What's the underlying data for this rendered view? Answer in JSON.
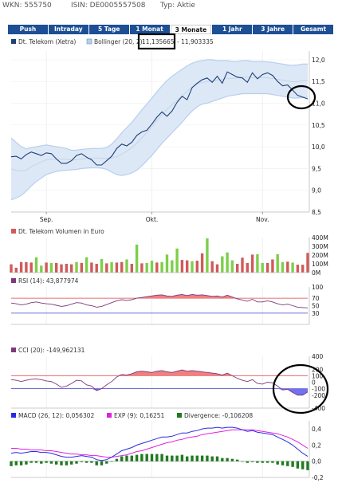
{
  "header": {
    "wkn": "WKN: 555750",
    "isin": "ISIN: DE0005557508",
    "typ": "Typ: Aktie"
  },
  "tabs": [
    {
      "label": "Push"
    },
    {
      "label": "Intraday"
    },
    {
      "label": "5 Tage"
    },
    {
      "label": "1 Monat"
    },
    {
      "label": "3 Monate",
      "active": true
    },
    {
      "label": "1 Jahr"
    },
    {
      "label": "3 Jahre"
    },
    {
      "label": "Gesamt"
    }
  ],
  "colors": {
    "price": "#1f3f77",
    "bollinger": "#b7cfee",
    "bollinger_mid": "#c6d3e6",
    "volume_up": "#7dcf4b",
    "volume_down": "#d05a5a",
    "rsi": "#7a3a7a",
    "rsi_fill": "#f08080",
    "cci": "#7a3a7a",
    "cci_fill_pos": "#f08080",
    "cci_fill_neg": "#7070f0",
    "macd": "#2a2ae0",
    "exp": "#e020e0",
    "divergence": "#1f7a1f",
    "line_red": "#e04040",
    "line_blue": "#4040d0",
    "annotation": "#000000"
  },
  "chart_data": [
    {
      "type": "line",
      "legend": [
        {
          "name": "Dt. Telekom (Xetra)"
        },
        {
          "name": "Bollinger (20, 2):",
          "extra": "11,135665",
          "extra2": "- 11,903335"
        }
      ],
      "x_ticks": [
        {
          "label": "Sep.",
          "idx": 7
        },
        {
          "label": "Okt.",
          "idx": 28
        },
        {
          "label": "Nov.",
          "idx": 50
        }
      ],
      "ylim": [
        8.5,
        12.2
      ],
      "y_ticks": [
        "12,0",
        "11,5",
        "11,0",
        "10,5",
        "10,0",
        "9,5",
        "9,0",
        "8,5"
      ],
      "y_tick_values": [
        12.0,
        11.5,
        11.0,
        10.5,
        10.0,
        9.5,
        9.0,
        8.5
      ],
      "price": [
        9.77,
        9.78,
        9.72,
        9.82,
        9.88,
        9.84,
        9.8,
        9.86,
        9.84,
        9.72,
        9.62,
        9.62,
        9.68,
        9.8,
        9.84,
        9.76,
        9.7,
        9.58,
        9.58,
        9.68,
        9.78,
        9.96,
        10.06,
        10.02,
        10.1,
        10.26,
        10.34,
        10.38,
        10.52,
        10.68,
        10.8,
        10.7,
        10.82,
        11.02,
        11.16,
        11.08,
        11.36,
        11.46,
        11.54,
        11.58,
        11.48,
        11.62,
        11.46,
        11.72,
        11.66,
        11.6,
        11.58,
        11.48,
        11.7,
        11.56,
        11.66,
        11.7,
        11.64,
        11.5,
        11.4,
        11.42,
        11.3,
        11.18,
        11.14,
        11.1
      ],
      "boll_upper": [
        10.2,
        10.1,
        10.0,
        9.95,
        9.98,
        10.0,
        10.02,
        10.04,
        10.02,
        10.0,
        9.98,
        9.96,
        9.92,
        9.92,
        9.94,
        9.95,
        9.96,
        9.96,
        9.96,
        9.98,
        10.06,
        10.18,
        10.32,
        10.44,
        10.56,
        10.7,
        10.85,
        10.98,
        11.12,
        11.26,
        11.4,
        11.52,
        11.62,
        11.7,
        11.78,
        11.86,
        11.92,
        11.96,
        11.98,
        12.0,
        12.0,
        11.98,
        11.98,
        11.98,
        11.96,
        11.96,
        11.98,
        11.98,
        11.96,
        11.96,
        11.96,
        11.95,
        11.94,
        11.92,
        11.9,
        11.88,
        11.87,
        11.88,
        11.9,
        11.9
      ],
      "boll_lower": [
        8.78,
        8.82,
        8.88,
        8.98,
        9.1,
        9.2,
        9.28,
        9.36,
        9.4,
        9.43,
        9.45,
        9.46,
        9.47,
        9.48,
        9.5,
        9.51,
        9.52,
        9.52,
        9.51,
        9.48,
        9.42,
        9.36,
        9.34,
        9.36,
        9.4,
        9.46,
        9.56,
        9.68,
        9.8,
        9.94,
        10.08,
        10.2,
        10.32,
        10.44,
        10.56,
        10.7,
        10.82,
        10.92,
        10.98,
        11.0,
        11.04,
        11.08,
        11.12,
        11.16,
        11.18,
        11.2,
        11.22,
        11.22,
        11.22,
        11.22,
        11.22,
        11.22,
        11.2,
        11.18,
        11.16,
        11.14,
        11.12,
        11.12,
        11.13,
        11.14
      ]
    },
    {
      "type": "bar",
      "title": "Dt. Telekom Volumen in Euro",
      "ylim": [
        0,
        400
      ],
      "y_ticks": [
        "400M",
        "300M",
        "200M",
        "100M",
        "0M"
      ],
      "y_tick_values": [
        400,
        300,
        200,
        100,
        0
      ],
      "values": [
        95,
        55,
        120,
        120,
        115,
        175,
        80,
        115,
        110,
        110,
        95,
        100,
        95,
        120,
        110,
        175,
        115,
        100,
        155,
        105,
        120,
        115,
        120,
        150,
        100,
        320,
        105,
        110,
        135,
        115,
        120,
        205,
        140,
        275,
        145,
        140,
        130,
        135,
        220,
        390,
        130,
        95,
        185,
        230,
        140,
        100,
        170,
        110,
        205,
        210,
        110,
        110,
        150,
        210,
        120,
        125,
        115,
        90,
        90,
        225
      ],
      "direction": [
        "down",
        "down",
        "down",
        "down",
        "down",
        "up",
        "up",
        "down",
        "up",
        "down",
        "down",
        "down",
        "down",
        "up",
        "down",
        "up",
        "down",
        "down",
        "up",
        "down",
        "up",
        "down",
        "down",
        "up",
        "down",
        "up",
        "down",
        "up",
        "up",
        "down",
        "up",
        "up",
        "up",
        "up",
        "down",
        "down",
        "up",
        "down",
        "down",
        "up",
        "down",
        "down",
        "up",
        "up",
        "up",
        "down",
        "down",
        "down",
        "down",
        "up",
        "up",
        "down",
        "down",
        "up",
        "up",
        "down",
        "up",
        "down",
        "down",
        "down"
      ]
    },
    {
      "type": "line",
      "title": "RSI (14): 43,877974",
      "ylim": [
        0,
        100
      ],
      "y_ticks": [
        "100",
        "70",
        "50",
        "30"
      ],
      "y_tick_values": [
        100,
        70,
        50,
        30
      ],
      "ref_lines": [
        70,
        30
      ],
      "values": [
        57,
        55,
        52,
        54,
        58,
        60,
        57,
        55,
        54,
        51,
        48,
        50,
        54,
        58,
        57,
        52,
        50,
        46,
        48,
        53,
        58,
        63,
        66,
        64,
        66,
        70,
        72,
        74,
        76,
        78,
        79,
        76,
        75,
        78,
        80,
        77,
        80,
        78,
        79,
        77,
        75,
        76,
        73,
        78,
        73,
        68,
        65,
        62,
        67,
        60,
        60,
        63,
        60,
        55,
        52,
        54,
        50,
        46,
        45,
        44
      ]
    },
    {
      "type": "line",
      "title": "CCI (20): -149,962131",
      "ylim": [
        -400,
        400
      ],
      "y_ticks": [
        "400",
        "200",
        "100",
        "0",
        "-100",
        "-200",
        "-400"
      ],
      "y_tick_values": [
        400,
        200,
        100,
        0,
        -100,
        -200,
        -400
      ],
      "ref_lines": [
        100,
        -100
      ],
      "values": [
        40,
        30,
        10,
        30,
        45,
        50,
        40,
        20,
        10,
        -30,
        -80,
        -60,
        -20,
        30,
        20,
        -40,
        -60,
        -130,
        -100,
        -40,
        10,
        80,
        120,
        110,
        130,
        160,
        170,
        160,
        150,
        170,
        180,
        160,
        150,
        170,
        190,
        170,
        180,
        170,
        160,
        150,
        140,
        130,
        110,
        140,
        100,
        60,
        30,
        10,
        40,
        -20,
        -30,
        0,
        -10,
        -60,
        -120,
        -110,
        -160,
        -200,
        -200,
        -150
      ]
    },
    {
      "type": "line",
      "legend": [
        {
          "name": "MACD (26, 12): 0,056302"
        },
        {
          "name": "EXP (9): 0,16251"
        },
        {
          "name": "Divergence: -0,106208"
        }
      ],
      "ylim": [
        -0.2,
        0.5
      ],
      "y_ticks": [
        "0,4",
        "0,2",
        "0,0",
        "-0,2"
      ],
      "y_tick_values": [
        0.4,
        0.2,
        0.0,
        -0.2
      ],
      "macd": [
        0.1,
        0.11,
        0.1,
        0.11,
        0.12,
        0.12,
        0.11,
        0.11,
        0.1,
        0.08,
        0.06,
        0.05,
        0.05,
        0.06,
        0.07,
        0.06,
        0.05,
        0.02,
        0.01,
        0.02,
        0.05,
        0.09,
        0.13,
        0.15,
        0.17,
        0.2,
        0.22,
        0.24,
        0.26,
        0.28,
        0.3,
        0.3,
        0.31,
        0.33,
        0.35,
        0.35,
        0.37,
        0.38,
        0.4,
        0.41,
        0.41,
        0.42,
        0.41,
        0.42,
        0.42,
        0.41,
        0.39,
        0.37,
        0.38,
        0.36,
        0.35,
        0.34,
        0.33,
        0.3,
        0.27,
        0.24,
        0.2,
        0.15,
        0.1,
        0.06
      ],
      "exp": [
        0.16,
        0.16,
        0.15,
        0.15,
        0.14,
        0.14,
        0.14,
        0.13,
        0.13,
        0.12,
        0.11,
        0.1,
        0.09,
        0.09,
        0.08,
        0.08,
        0.07,
        0.07,
        0.06,
        0.05,
        0.05,
        0.06,
        0.07,
        0.08,
        0.1,
        0.12,
        0.13,
        0.15,
        0.17,
        0.19,
        0.21,
        0.23,
        0.24,
        0.26,
        0.27,
        0.29,
        0.3,
        0.31,
        0.33,
        0.34,
        0.35,
        0.36,
        0.37,
        0.38,
        0.39,
        0.39,
        0.39,
        0.39,
        0.39,
        0.38,
        0.37,
        0.36,
        0.35,
        0.34,
        0.32,
        0.3,
        0.27,
        0.24,
        0.2,
        0.16
      ],
      "divergence": [
        -0.06,
        -0.05,
        -0.05,
        -0.04,
        -0.02,
        -0.02,
        -0.03,
        -0.02,
        -0.03,
        -0.04,
        -0.05,
        -0.05,
        -0.04,
        -0.03,
        -0.01,
        -0.02,
        -0.02,
        -0.05,
        -0.05,
        -0.03,
        0.0,
        0.03,
        0.06,
        0.07,
        0.07,
        0.08,
        0.09,
        0.09,
        0.09,
        0.09,
        0.09,
        0.07,
        0.07,
        0.07,
        0.08,
        0.06,
        0.07,
        0.07,
        0.07,
        0.07,
        0.06,
        0.06,
        0.04,
        0.04,
        0.03,
        0.02,
        0.0,
        -0.02,
        -0.01,
        -0.02,
        -0.02,
        -0.02,
        -0.02,
        -0.04,
        -0.05,
        -0.06,
        -0.07,
        -0.09,
        -0.1,
        -0.11
      ]
    }
  ]
}
